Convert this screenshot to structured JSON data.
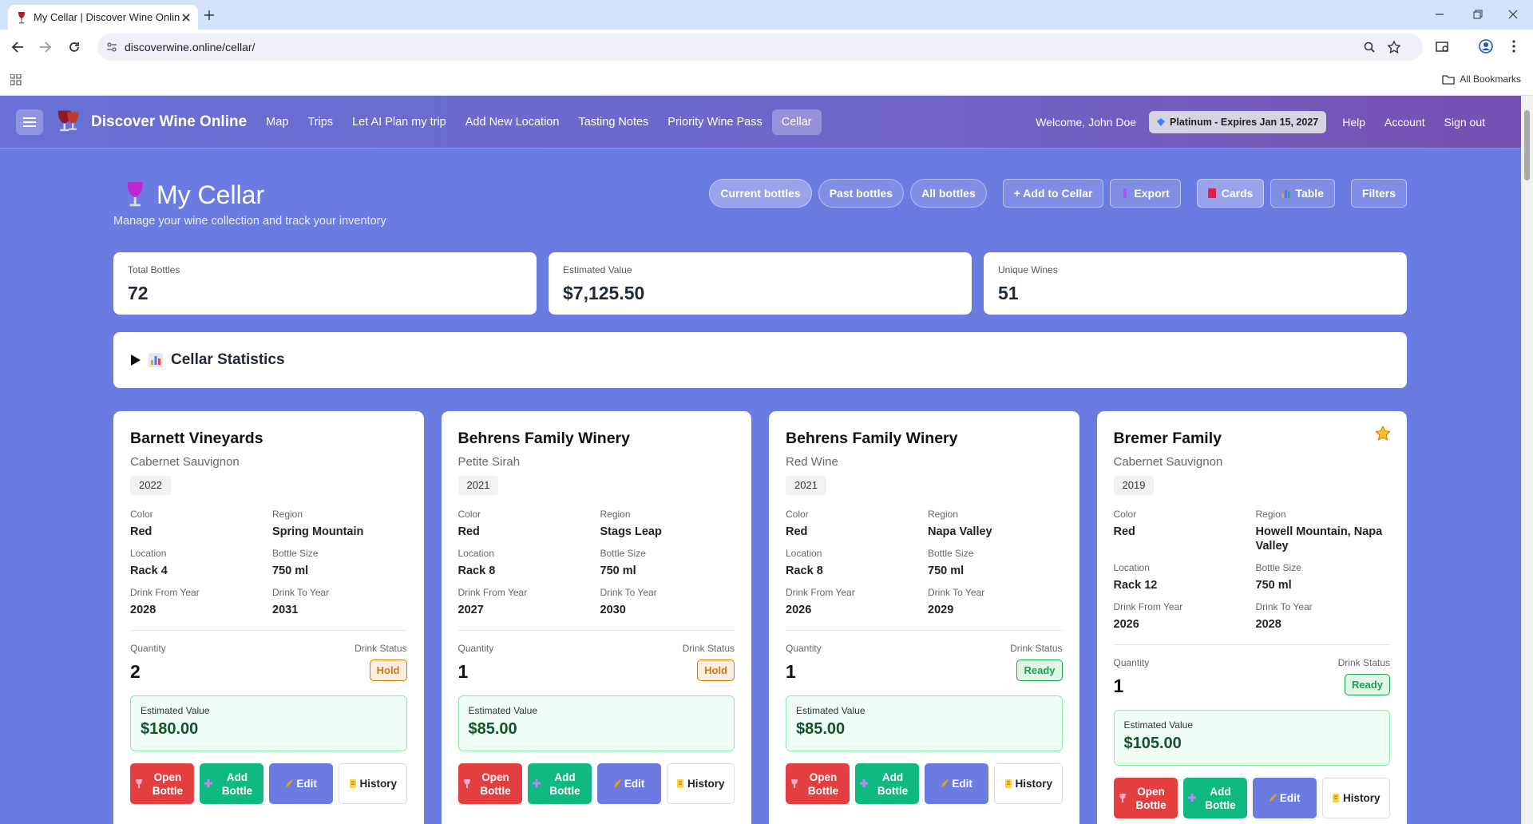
{
  "browser": {
    "tab_title": "My Cellar | Discover Wine Onlin",
    "url": "discoverwine.online/cellar/",
    "bookmarks": "All Bookmarks"
  },
  "nav": {
    "brand": "Discover Wine Online",
    "links": [
      "Map",
      "Trips",
      "Let AI Plan my trip",
      "Add New Location",
      "Tasting Notes",
      "Priority Wine Pass",
      "Cellar"
    ],
    "welcome": "Welcome, John Doe",
    "badge": "Platinum - Expires Jan 15, 2027",
    "right_links": [
      "Help",
      "Account",
      "Sign out"
    ]
  },
  "header": {
    "title": "My Cellar",
    "subtitle": "Manage your wine collection and track your inventory",
    "filter_buttons": [
      "Current bottles",
      "Past bottles",
      "All bottles"
    ],
    "action_buttons": [
      "+ Add to Cellar",
      "Export"
    ],
    "view_buttons": [
      "Cards",
      "Table"
    ],
    "filters": "Filters"
  },
  "stats": [
    {
      "label": "Total Bottles",
      "value": "72"
    },
    {
      "label": "Estimated Value",
      "value": "$7,125.50"
    },
    {
      "label": "Unique Wines",
      "value": "51"
    }
  ],
  "statistics_panel": {
    "title": "Cellar Statistics"
  },
  "card_labels": {
    "color": "Color",
    "region": "Region",
    "location": "Location",
    "bottle_size": "Bottle Size",
    "drink_from": "Drink From Year",
    "drink_to": "Drink To Year",
    "quantity": "Quantity",
    "drink_status": "Drink Status",
    "estimated_value": "Estimated Value",
    "buttons": [
      "Open Bottle",
      "Add Bottle",
      "Edit",
      "History"
    ]
  },
  "cards": [
    {
      "winery": "Barnett Vineyards",
      "varietal": "Cabernet Sauvignon",
      "vintage": "2022",
      "color": "Red",
      "region": "Spring Mountain",
      "location": "Rack 4",
      "bottle_size": "750 ml",
      "drink_from": "2028",
      "drink_to": "2031",
      "quantity": "2",
      "status": "Hold",
      "status_color": "#d97706",
      "value": "$180.00",
      "favorite": false
    },
    {
      "winery": "Behrens Family Winery",
      "varietal": "Petite Sirah",
      "vintage": "2021",
      "color": "Red",
      "region": "Stags Leap",
      "location": "Rack 8",
      "bottle_size": "750 ml",
      "drink_from": "2027",
      "drink_to": "2030",
      "quantity": "1",
      "status": "Hold",
      "status_color": "#d97706",
      "value": "$85.00",
      "favorite": false
    },
    {
      "winery": "Behrens Family Winery",
      "varietal": "Red Wine",
      "vintage": "2021",
      "color": "Red",
      "region": "Napa Valley",
      "location": "Rack 8",
      "bottle_size": "750 ml",
      "drink_from": "2026",
      "drink_to": "2029",
      "quantity": "1",
      "status": "Ready",
      "status_color": "#16a34a",
      "value": "$85.00",
      "favorite": false
    },
    {
      "winery": "Bremer Family",
      "varietal": "Cabernet Sauvignon",
      "vintage": "2019",
      "color": "Red",
      "region": "Howell Mountain, Napa Valley",
      "location": "Rack 12",
      "bottle_size": "750 ml",
      "drink_from": "2026",
      "drink_to": "2028",
      "quantity": "1",
      "status": "Ready",
      "status_color": "#16a34a",
      "value": "$105.00",
      "favorite": true
    }
  ]
}
